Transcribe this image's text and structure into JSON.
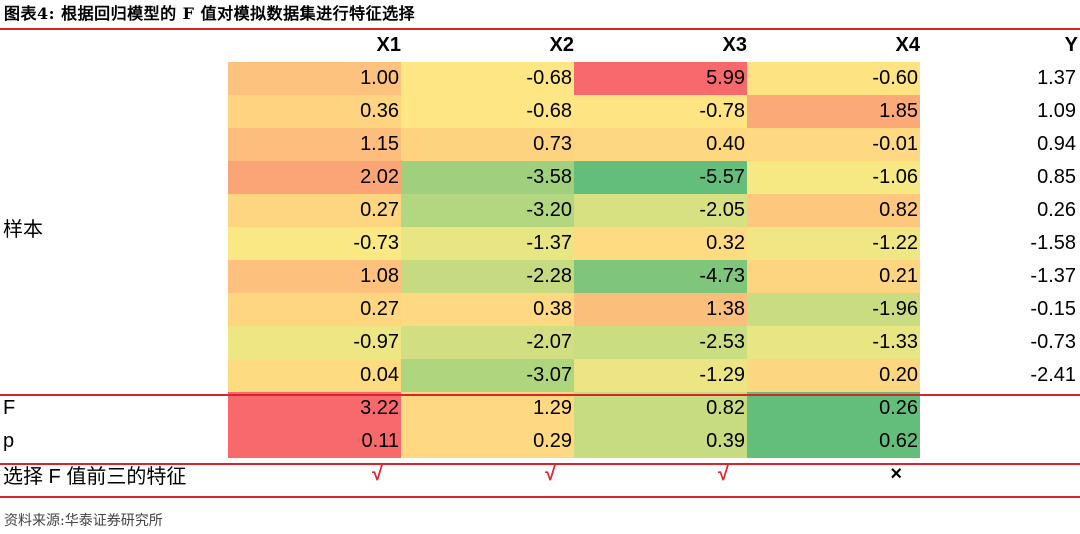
{
  "title": "图表4:  根据回归模型的 F 值对模拟数据集进行特征选择",
  "columns": [
    "X1",
    "X2",
    "X3",
    "X4",
    "Y"
  ],
  "sample_label": "样本",
  "rows": [
    {
      "values": [
        "1.00",
        "-0.68",
        "5.99",
        "-0.60"
      ],
      "y": "1.37",
      "colors": [
        "#fdc27e",
        "#fde683",
        "#f8696b",
        "#fee382"
      ]
    },
    {
      "values": [
        "0.36",
        "-0.68",
        "-0.78",
        "1.85"
      ],
      "y": "1.09",
      "colors": [
        "#fed480",
        "#fde683",
        "#fee483",
        "#fbaa77"
      ]
    },
    {
      "values": [
        "1.15",
        "0.73",
        "0.40",
        "-0.01"
      ],
      "y": "0.94",
      "colors": [
        "#fdbe7d",
        "#fed380",
        "#fed881",
        "#fed981"
      ]
    },
    {
      "values": [
        "2.02",
        "-3.58",
        "-5.57",
        "-1.06"
      ],
      "y": "0.85",
      "colors": [
        "#fba576",
        "#a0d07e",
        "#63be7b",
        "#f6e883"
      ]
    },
    {
      "values": [
        "0.27",
        "-3.20",
        "-2.05",
        "0.82"
      ],
      "y": "0.26",
      "colors": [
        "#fed680",
        "#b3d680",
        "#d8e182",
        "#fdc87e"
      ]
    },
    {
      "values": [
        "-0.73",
        "-1.37",
        "0.32",
        "-1.22"
      ],
      "y": "-1.58",
      "colors": [
        "#f9e883",
        "#e8e583",
        "#feda81",
        "#f0e683"
      ]
    },
    {
      "values": [
        "1.08",
        "-2.28",
        "-4.73",
        "0.21"
      ],
      "y": "-1.37",
      "colors": [
        "#fdc07d",
        "#c6db81",
        "#7fc67c",
        "#fdd480"
      ]
    },
    {
      "values": [
        "0.27",
        "0.38",
        "1.38",
        "-1.96"
      ],
      "y": "-0.15",
      "colors": [
        "#fed680",
        "#fdd981",
        "#fcbe7b",
        "#cadc81"
      ]
    },
    {
      "values": [
        "-0.97",
        "-2.07",
        "-2.53",
        "-1.33"
      ],
      "y": "-0.73",
      "colors": [
        "#eee583",
        "#d1de81",
        "#cbdd81",
        "#e8e583"
      ]
    },
    {
      "values": [
        "0.04",
        "-3.07",
        "-1.29",
        "0.20"
      ],
      "y": "-2.41",
      "colors": [
        "#fddc81",
        "#b0d57f",
        "#ede583",
        "#fdd681"
      ]
    }
  ],
  "f_row": {
    "label": "F",
    "values": [
      "3.22",
      "1.29",
      "0.82",
      "0.26"
    ],
    "colors": [
      "#f8696b",
      "#fed981",
      "#c7dc81",
      "#63be7b"
    ]
  },
  "p_row": {
    "label": "p",
    "values": [
      "0.11",
      "0.29",
      "0.39",
      "0.62"
    ],
    "colors": [
      "#f8696b",
      "#fed981",
      "#c7dc81",
      "#63be7b"
    ]
  },
  "select_row": {
    "label": "选择 F 值前三的特征",
    "marks": [
      "√",
      "√",
      "√",
      "×"
    ]
  },
  "source": "资料来源:华泰证券研究所"
}
